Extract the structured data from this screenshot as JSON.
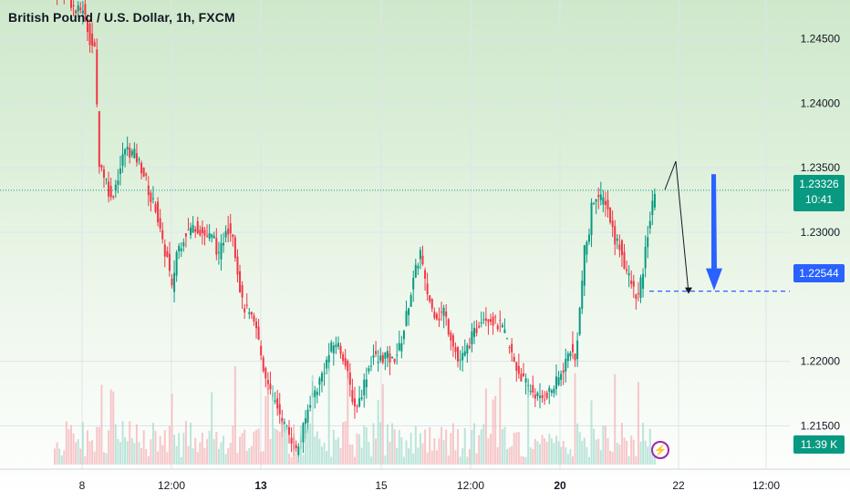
{
  "header": {
    "title": "British Pound / U.S. Dollar, 1h, FXCM"
  },
  "price_tag": {
    "price": "1.23326",
    "countdown": "10:41"
  },
  "target_tag": {
    "price": "1.22544"
  },
  "volume_tag": {
    "value": "11.39 K"
  },
  "icons": {
    "flash": "lightning-bolt-icon"
  },
  "colors": {
    "up": "#089981",
    "down": "#f23645",
    "target": "#2962ff",
    "grid": "#e0e3eb"
  },
  "chart_data": {
    "type": "candlestick",
    "title": "British Pound / U.S. Dollar, 1h, FXCM",
    "y_axis": {
      "side": "right",
      "min": 1.212,
      "max": 1.248,
      "ticks": [
        "1.24500",
        "1.24000",
        "1.23500",
        "1.23000",
        "1.22000",
        "1.21500"
      ]
    },
    "x_axis": {
      "ticks": [
        "8",
        "12:00",
        "13",
        "15",
        "12:00",
        "20",
        "22",
        "12:00"
      ]
    },
    "price_path": [
      [
        0,
        1.2485
      ],
      [
        4,
        1.249
      ],
      [
        9,
        1.247
      ],
      [
        12,
        1.2474
      ],
      [
        15,
        1.245
      ],
      [
        17,
        1.244
      ],
      [
        19,
        1.2355
      ],
      [
        22,
        1.234
      ],
      [
        24,
        1.2325
      ],
      [
        28,
        1.235
      ],
      [
        30,
        1.2365
      ],
      [
        34,
        1.236
      ],
      [
        37,
        1.235
      ],
      [
        39,
        1.234
      ],
      [
        41,
        1.2325
      ],
      [
        43,
        1.232
      ],
      [
        46,
        1.229
      ],
      [
        48,
        1.228
      ],
      [
        50,
        1.2255
      ],
      [
        52,
        1.2285
      ],
      [
        56,
        1.23
      ],
      [
        60,
        1.2305
      ],
      [
        64,
        1.2298
      ],
      [
        68,
        1.2295
      ],
      [
        70,
        1.228
      ],
      [
        72,
        1.2295
      ],
      [
        73,
        1.2305
      ],
      [
        76,
        1.23
      ],
      [
        78,
        1.227
      ],
      [
        80,
        1.2245
      ],
      [
        83,
        1.2235
      ],
      [
        86,
        1.2225
      ],
      [
        89,
        1.2195
      ],
      [
        92,
        1.2175
      ],
      [
        95,
        1.2165
      ],
      [
        98,
        1.215
      ],
      [
        101,
        1.214
      ],
      [
        103,
        1.213
      ],
      [
        105,
        1.214
      ],
      [
        107,
        1.2155
      ],
      [
        109,
        1.217
      ],
      [
        112,
        1.218
      ],
      [
        114,
        1.219
      ],
      [
        116,
        1.22
      ],
      [
        118,
        1.221
      ],
      [
        120,
        1.2215
      ],
      [
        123,
        1.2205
      ],
      [
        126,
        1.218
      ],
      [
        128,
        1.2165
      ],
      [
        130,
        1.217
      ],
      [
        133,
        1.219
      ],
      [
        136,
        1.2205
      ],
      [
        138,
        1.22
      ],
      [
        141,
        1.2205
      ],
      [
        144,
        1.22
      ],
      [
        147,
        1.221
      ],
      [
        149,
        1.2225
      ],
      [
        151,
        1.2245
      ],
      [
        154,
        1.227
      ],
      [
        156,
        1.2285
      ],
      [
        158,
        1.226
      ],
      [
        161,
        1.224
      ],
      [
        164,
        1.2235
      ],
      [
        166,
        1.224
      ],
      [
        168,
        1.2225
      ],
      [
        170,
        1.2215
      ],
      [
        172,
        1.22
      ],
      [
        175,
        1.2205
      ],
      [
        177,
        1.2215
      ],
      [
        180,
        1.2225
      ],
      [
        182,
        1.2235
      ],
      [
        185,
        1.2235
      ],
      [
        188,
        1.223
      ],
      [
        191,
        1.2225
      ],
      [
        194,
        1.221
      ],
      [
        197,
        1.2195
      ],
      [
        200,
        1.2185
      ],
      [
        202,
        1.218
      ],
      [
        205,
        1.2175
      ],
      [
        207,
        1.217
      ],
      [
        210,
        1.2175
      ],
      [
        213,
        1.218
      ],
      [
        216,
        1.219
      ],
      [
        218,
        1.22
      ],
      [
        220,
        1.221
      ],
      [
        222,
        1.22
      ],
      [
        224,
        1.224
      ],
      [
        226,
        1.2285
      ],
      [
        228,
        1.23
      ],
      [
        229,
        1.232
      ],
      [
        231,
        1.233
      ],
      [
        233,
        1.2325
      ],
      [
        235,
        1.2325
      ],
      [
        237,
        1.231
      ],
      [
        239,
        1.2295
      ],
      [
        241,
        1.229
      ],
      [
        243,
        1.2275
      ],
      [
        245,
        1.2265
      ],
      [
        247,
        1.2255
      ],
      [
        249,
        1.225
      ],
      [
        251,
        1.227
      ],
      [
        253,
        1.23
      ],
      [
        255,
        1.232
      ],
      [
        256,
        1.2333
      ]
    ],
    "projection": [
      [
        1.2333
      ],
      [
        1.2355
      ],
      [
        1.2253
      ]
    ],
    "target_price": 1.22544,
    "current_price": 1.23326,
    "volume_label": "11.39 K"
  }
}
